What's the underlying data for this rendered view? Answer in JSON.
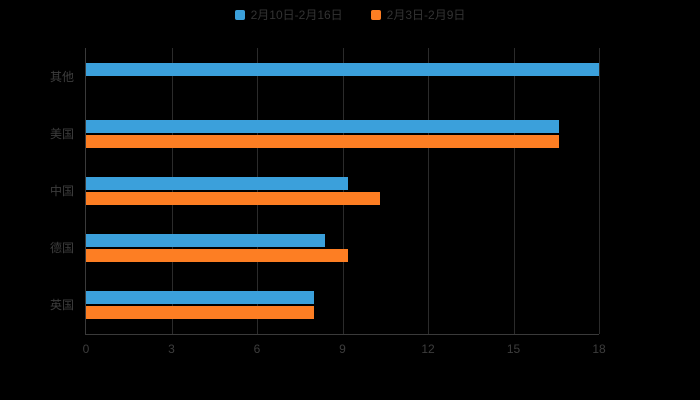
{
  "page": {
    "background": "#000000"
  },
  "legend": {
    "items": [
      {
        "label": "2月10日-2月16日",
        "color": "#3BA0DB"
      },
      {
        "label": "2月3日-2月9日",
        "color": "#FD7E23"
      }
    ]
  },
  "chart_data": {
    "type": "bar",
    "orientation": "horizontal",
    "title": "",
    "xlabel": "",
    "ylabel": "",
    "categories": [
      "其他",
      "美国",
      "中国",
      "德国",
      "英国"
    ],
    "series": [
      {
        "name": "2月10日-2月16日",
        "color": "#3BA0DB",
        "values": [
          18,
          16.6,
          9.2,
          8.4,
          8.0
        ]
      },
      {
        "name": "2月3日-2月9日",
        "color": "#FD7E23",
        "values": [
          0,
          16.6,
          10.3,
          9.2,
          8.0
        ]
      }
    ],
    "xlim": [
      0,
      18
    ],
    "x_ticks": [
      0,
      3,
      6,
      9,
      12,
      15,
      18
    ],
    "grid": true,
    "legend_position": "top"
  }
}
